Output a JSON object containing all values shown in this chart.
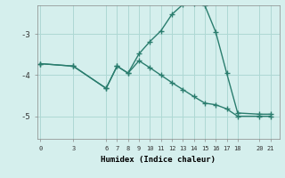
{
  "xlabel": "Humidex (Indice chaleur)",
  "background_color": "#d5efed",
  "line_color": "#2a7d6e",
  "grid_color": "#aed8d4",
  "xtick_labels": [
    "0",
    "3",
    "6",
    "7",
    "8",
    "9",
    "10",
    "11",
    "12",
    "13",
    "14",
    "15",
    "16",
    "17",
    "18",
    "20",
    "21"
  ],
  "xtick_vals": [
    0,
    3,
    6,
    7,
    8,
    9,
    10,
    11,
    12,
    13,
    14,
    15,
    16,
    17,
    18,
    20,
    21
  ],
  "ytick_labels": [
    "-3",
    "-4",
    "-5"
  ],
  "ytick_vals": [
    -3,
    -4,
    -5
  ],
  "xlim": [
    -0.3,
    21.8
  ],
  "ylim": [
    -5.55,
    -2.3
  ],
  "curve_x": [
    0,
    3,
    6,
    7,
    8,
    9,
    10,
    11,
    12,
    13,
    14,
    15,
    16,
    17,
    18,
    20,
    21
  ],
  "curve_y": [
    -3.72,
    -3.78,
    -4.32,
    -3.78,
    -3.95,
    -3.48,
    -3.18,
    -2.92,
    -2.52,
    -2.28,
    -2.25,
    -2.3,
    -2.95,
    -3.95,
    -4.92,
    -4.95,
    -4.95
  ],
  "line2_x": [
    0,
    3,
    6,
    7,
    8,
    9,
    10,
    11,
    12,
    13,
    14,
    15,
    16,
    17,
    18,
    20,
    21
  ],
  "line2_y": [
    -3.72,
    -3.78,
    -4.32,
    -3.78,
    -3.95,
    -3.65,
    -3.82,
    -4.0,
    -4.18,
    -4.35,
    -4.52,
    -4.68,
    -4.72,
    -4.82,
    -5.0,
    -5.0,
    -5.0
  ],
  "marker": "+",
  "marker_size": 4,
  "line_width": 1.0
}
